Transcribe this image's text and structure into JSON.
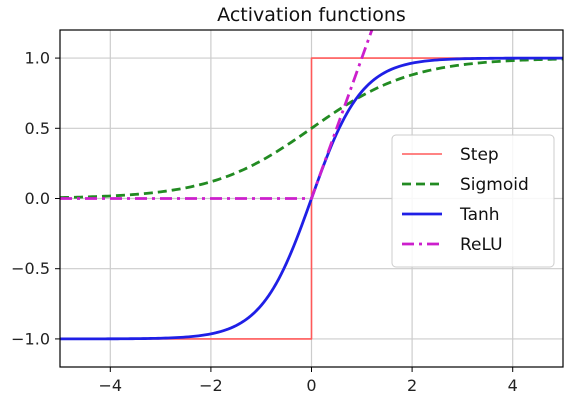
{
  "chart_data": {
    "type": "line",
    "title": "Activation functions",
    "xlabel": "",
    "ylabel": "",
    "xlim": [
      -5,
      5
    ],
    "ylim": [
      -1.2,
      1.2
    ],
    "x_ticks": [
      -4,
      -2,
      0,
      2,
      4
    ],
    "x_tick_labels": [
      "−4",
      "−2",
      "0",
      "2",
      "4"
    ],
    "y_ticks": [
      1.0,
      0.5,
      0.0,
      -0.5,
      -1.0
    ],
    "y_tick_labels": [
      "1.0",
      "0.5",
      "0.0",
      "−0.5",
      "−1.0"
    ],
    "grid": true,
    "legend_position": "center-right",
    "series": [
      {
        "name": "Step",
        "color": "#ff5a5a",
        "line_style": "solid",
        "x": [
          -5,
          0,
          0,
          5
        ],
        "y": [
          -1,
          -1,
          1,
          1
        ]
      },
      {
        "name": "Sigmoid",
        "color": "#228b22",
        "line_style": "dashed",
        "x": [
          -5,
          -4.5,
          -4,
          -3.5,
          -3,
          -2.5,
          -2,
          -1.5,
          -1,
          -0.5,
          0,
          0.5,
          1,
          1.5,
          2,
          2.5,
          3,
          3.5,
          4,
          4.5,
          5
        ],
        "y": [
          0.007,
          0.011,
          0.018,
          0.029,
          0.047,
          0.076,
          0.119,
          0.182,
          0.269,
          0.378,
          0.5,
          0.622,
          0.731,
          0.818,
          0.881,
          0.924,
          0.953,
          0.971,
          0.982,
          0.989,
          0.993
        ]
      },
      {
        "name": "Tanh",
        "color": "#1f1fe6",
        "line_style": "solid",
        "x": [
          -5,
          -4,
          -3,
          -2.5,
          -2,
          -1.5,
          -1,
          -0.75,
          -0.5,
          -0.25,
          0,
          0.25,
          0.5,
          0.75,
          1,
          1.5,
          2,
          2.5,
          3,
          4,
          5
        ],
        "y": [
          -1.0,
          -0.999,
          -0.995,
          -0.987,
          -0.964,
          -0.905,
          -0.762,
          -0.635,
          -0.462,
          -0.245,
          0.0,
          0.245,
          0.462,
          0.635,
          0.762,
          0.905,
          0.964,
          0.987,
          0.995,
          0.999,
          1.0
        ]
      },
      {
        "name": "ReLU",
        "color": "#cc1fcc",
        "line_style": "dashdot",
        "x": [
          -5,
          0,
          1.2
        ],
        "y": [
          0,
          0,
          1.2
        ]
      }
    ]
  }
}
